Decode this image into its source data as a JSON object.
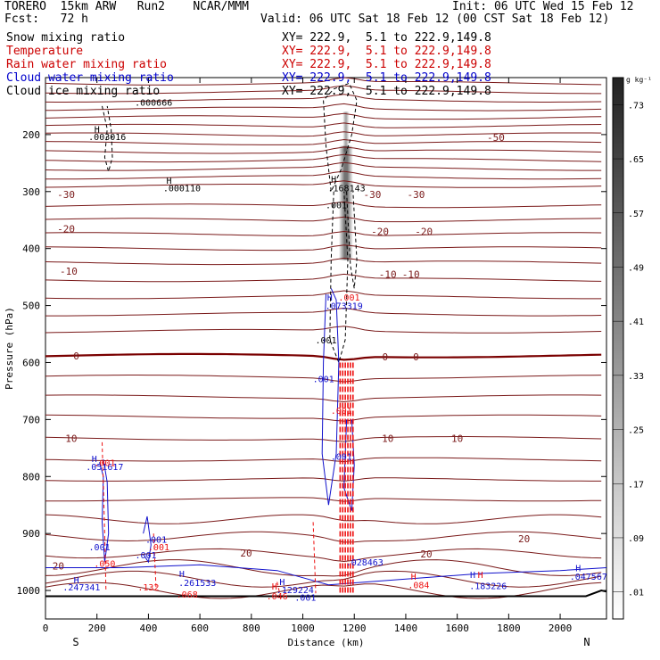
{
  "header": {
    "model": "TORERO  15km ARW   Run2    NCAR/MMM",
    "init": "Init: 06 UTC Wed 15 Feb 12",
    "fcst": "Fcst:   72 h",
    "valid": "Valid: 06 UTC Sat 18 Feb 12 (00 CST Sat 18 Feb 12)"
  },
  "fields": [
    {
      "label": "Snow mixing ratio",
      "xy": "XY= 222.9,  5.1 to 222.9,149.8",
      "color": "#000000"
    },
    {
      "label": "Temperature",
      "xy": "XY= 222.9,  5.1 to 222.9,149.8",
      "color": "#cc0000"
    },
    {
      "label": "Rain water mixing ratio",
      "xy": "XY= 222.9,  5.1 to 222.9,149.8",
      "color": "#cc0000"
    },
    {
      "label": "Cloud water mixing ratio",
      "xy": "XY= 222.9,  5.1 to 222.9,149.8",
      "color": "#0000cc"
    },
    {
      "label": "Cloud ice mixing ratio",
      "xy": "XY= 222.9,  5.1 to 222.9,149.8",
      "color": "#000000"
    }
  ],
  "colors": {
    "temperature": "#7a1a1a",
    "temperature_zero": "#7a0000",
    "rain": "#ee1111",
    "cloud_water": "#1111cc",
    "ice": "#000000",
    "snow_shading": "#444444"
  },
  "chart_data": {
    "type": "contour cross-section",
    "xlabel": "Distance (km)",
    "ylabel": "Pressure (hPa)",
    "xlim": [
      0,
      2180
    ],
    "ylim": [
      1050,
      100
    ],
    "x_ticks": [
      0,
      200,
      400,
      600,
      800,
      1000,
      1200,
      1400,
      1600,
      1800,
      2000
    ],
    "y_ticks": [
      200,
      300,
      400,
      500,
      600,
      700,
      800,
      900,
      1000
    ],
    "end_labels": {
      "left": "S",
      "right": "N"
    },
    "colorbar": {
      "unit": "g kg⁻¹",
      "ticks": [
        ".01",
        ".09",
        ".17",
        ".25",
        ".33",
        ".41",
        ".49",
        ".57",
        ".65",
        ".73"
      ]
    },
    "temperature_contours": [
      {
        "label": "-50",
        "x": 1750,
        "p": 205
      },
      {
        "label": "-30",
        "x": 80,
        "p": 305
      },
      {
        "label": "-30",
        "x": 1270,
        "p": 305
      },
      {
        "label": "-30",
        "x": 1440,
        "p": 305
      },
      {
        "label": "-20",
        "x": 80,
        "p": 365
      },
      {
        "label": "-20",
        "x": 1300,
        "p": 370
      },
      {
        "label": "-20",
        "x": 1470,
        "p": 370
      },
      {
        "label": "-10",
        "x": 90,
        "p": 440
      },
      {
        "label": "-10",
        "x": 1330,
        "p": 445
      },
      {
        "label": "-10",
        "x": 1420,
        "p": 445
      },
      {
        "label": "0",
        "x": 120,
        "p": 588
      },
      {
        "label": "0",
        "x": 1320,
        "p": 590
      },
      {
        "label": "0",
        "x": 1440,
        "p": 590
      },
      {
        "label": "10",
        "x": 100,
        "p": 733
      },
      {
        "label": "10",
        "x": 1330,
        "p": 733
      },
      {
        "label": "10",
        "x": 1600,
        "p": 733
      },
      {
        "label": "20",
        "x": 50,
        "p": 957
      },
      {
        "label": "20",
        "x": 780,
        "p": 934
      },
      {
        "label": "20",
        "x": 1480,
        "p": 936
      },
      {
        "label": "20",
        "x": 1860,
        "p": 909
      }
    ],
    "annotations": [
      {
        "text": "H",
        "x": 200,
        "p": 190,
        "series": "ice"
      },
      {
        "text": ".003016",
        "x": 240,
        "p": 203,
        "series": "ice"
      },
      {
        "text": ".000666",
        "x": 420,
        "p": 143,
        "series": "ice"
      },
      {
        "text": "H",
        "x": 480,
        "p": 280,
        "series": "ice"
      },
      {
        "text": ".000110",
        "x": 530,
        "p": 293,
        "series": "ice"
      },
      {
        "text": "H",
        "x": 1120,
        "p": 278,
        "series": "ice"
      },
      {
        "text": ".168143",
        "x": 1170,
        "p": 293,
        "series": "ice"
      },
      {
        "text": ".001",
        "x": 1130,
        "p": 323,
        "series": "ice"
      },
      {
        "text": "H",
        "x": 1105,
        "p": 485,
        "series": "cloud_water"
      },
      {
        "text": ".073319",
        "x": 1160,
        "p": 500,
        "series": "cloud_water"
      },
      {
        "text": ".001",
        "x": 1180,
        "p": 485,
        "series": "rain"
      },
      {
        "text": ".001",
        "x": 1090,
        "p": 560,
        "series": "ice"
      },
      {
        "text": ".001",
        "x": 1080,
        "p": 628,
        "series": "cloud_water"
      },
      {
        "text": ".001",
        "x": 1150,
        "p": 684,
        "series": "rain"
      },
      {
        "text": ".001",
        "x": 1150,
        "p": 764,
        "series": "cloud_water"
      },
      {
        "text": "H",
        "x": 190,
        "p": 768,
        "series": "cloud_water"
      },
      {
        "text": ".051617",
        "x": 230,
        "p": 782,
        "series": "cloud_water"
      },
      {
        "text": ".001",
        "x": 230,
        "p": 775,
        "series": "rain"
      },
      {
        "text": ".001",
        "x": 210,
        "p": 923,
        "series": "cloud_water"
      },
      {
        "text": ".001",
        "x": 430,
        "p": 910,
        "series": "cloud_water"
      },
      {
        "text": ".001",
        "x": 440,
        "p": 923,
        "series": "rain"
      },
      {
        "text": ".001",
        "x": 390,
        "p": 937,
        "series": "cloud_water"
      },
      {
        "text": ".050",
        "x": 230,
        "p": 952,
        "series": "rain"
      },
      {
        "text": "H",
        "x": 120,
        "p": 981,
        "series": "cloud_water"
      },
      {
        "text": ".247341",
        "x": 140,
        "p": 994,
        "series": "cloud_water"
      },
      {
        "text": ".132",
        "x": 400,
        "p": 994,
        "series": "rain"
      },
      {
        "text": "H",
        "x": 530,
        "p": 970,
        "series": "cloud_water"
      },
      {
        "text": ".261533",
        "x": 590,
        "p": 986,
        "series": "cloud_water"
      },
      {
        "text": ".068",
        "x": 550,
        "p": 1006,
        "series": "rain"
      },
      {
        "text": "H",
        "x": 890,
        "p": 992,
        "series": "rain"
      },
      {
        "text": "H",
        "x": 920,
        "p": 984,
        "series": "cloud_water"
      },
      {
        "text": ".129224",
        "x": 970,
        "p": 998,
        "series": "cloud_water"
      },
      {
        "text": ".046",
        "x": 900,
        "p": 1009,
        "series": "rain"
      },
      {
        "text": ".001",
        "x": 1010,
        "p": 1012,
        "series": "cloud_water"
      },
      {
        "text": ".028463",
        "x": 1240,
        "p": 950,
        "series": "cloud_water"
      },
      {
        "text": "H",
        "x": 1430,
        "p": 975,
        "series": "rain"
      },
      {
        "text": ".084",
        "x": 1450,
        "p": 990,
        "series": "rain"
      },
      {
        "text": "H",
        "x": 1660,
        "p": 972,
        "series": "cloud_water"
      },
      {
        "text": "H",
        "x": 1690,
        "p": 972,
        "series": "rain"
      },
      {
        "text": ".183226",
        "x": 1720,
        "p": 991,
        "series": "cloud_water"
      },
      {
        "text": "H",
        "x": 2070,
        "p": 960,
        "series": "cloud_water"
      },
      {
        "text": ".047567",
        "x": 2110,
        "p": 975,
        "series": "cloud_water"
      }
    ]
  }
}
